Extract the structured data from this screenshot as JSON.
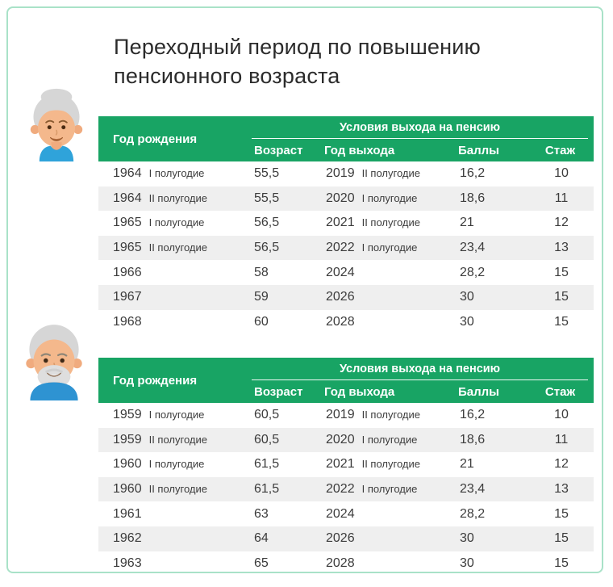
{
  "title": {
    "line1": "Переходный период по повышению",
    "line2": "пенсионного возраста"
  },
  "table_headers": {
    "birth_year": "Год рождения",
    "conditions": "Условия выхода на пенсию",
    "age": "Возраст",
    "exit_year": "Год выхода",
    "points": "Баллы",
    "experience": "Стаж"
  },
  "tables": [
    {
      "avatar_icon": "elderly-woman-avatar",
      "rows": [
        {
          "birth_year": "1964",
          "birth_half": "I полугодие",
          "age": "55,5",
          "exit_year": "2019",
          "exit_half": "II полугодие",
          "points": "16,2",
          "experience": "10"
        },
        {
          "birth_year": "1964",
          "birth_half": "II полугодие",
          "age": "55,5",
          "exit_year": "2020",
          "exit_half": "I полугодие",
          "points": "18,6",
          "experience": "11"
        },
        {
          "birth_year": "1965",
          "birth_half": "I полугодие",
          "age": "56,5",
          "exit_year": "2021",
          "exit_half": "II полугодие",
          "points": "21",
          "experience": "12"
        },
        {
          "birth_year": "1965",
          "birth_half": "II полугодие",
          "age": "56,5",
          "exit_year": "2022",
          "exit_half": "I полугодие",
          "points": "23,4",
          "experience": "13"
        },
        {
          "birth_year": "1966",
          "birth_half": "",
          "age": "58",
          "exit_year": "2024",
          "exit_half": "",
          "points": "28,2",
          "experience": "15"
        },
        {
          "birth_year": "1967",
          "birth_half": "",
          "age": "59",
          "exit_year": "2026",
          "exit_half": "",
          "points": "30",
          "experience": "15"
        },
        {
          "birth_year": "1968",
          "birth_half": "",
          "age": "60",
          "exit_year": "2028",
          "exit_half": "",
          "points": "30",
          "experience": "15"
        }
      ]
    },
    {
      "avatar_icon": "elderly-man-avatar",
      "rows": [
        {
          "birth_year": "1959",
          "birth_half": "I полугодие",
          "age": "60,5",
          "exit_year": "2019",
          "exit_half": "II полугодие",
          "points": "16,2",
          "experience": "10"
        },
        {
          "birth_year": "1959",
          "birth_half": "II полугодие",
          "age": "60,5",
          "exit_year": "2020",
          "exit_half": "I полугодие",
          "points": "18,6",
          "experience": "11"
        },
        {
          "birth_year": "1960",
          "birth_half": "I полугодие",
          "age": "61,5",
          "exit_year": "2021",
          "exit_half": "II полугодие",
          "points": "21",
          "experience": "12"
        },
        {
          "birth_year": "1960",
          "birth_half": "II полугодие",
          "age": "61,5",
          "exit_year": "2022",
          "exit_half": "I полугодие",
          "points": "23,4",
          "experience": "13"
        },
        {
          "birth_year": "1961",
          "birth_half": "",
          "age": "63",
          "exit_year": "2024",
          "exit_half": "",
          "points": "28,2",
          "experience": "15"
        },
        {
          "birth_year": "1962",
          "birth_half": "",
          "age": "64",
          "exit_year": "2026",
          "exit_half": "",
          "points": "30",
          "experience": "15"
        },
        {
          "birth_year": "1963",
          "birth_half": "",
          "age": "65",
          "exit_year": "2028",
          "exit_half": "",
          "points": "30",
          "experience": "15"
        }
      ]
    }
  ],
  "colors": {
    "header_green": "#18a464",
    "header_text": "#ffffff",
    "row_stripe_gray": "#efefef",
    "body_text": "#3c3c3c",
    "title_text": "#2b2b2b",
    "frame_border_mint": "#a9e2c8",
    "hair_gray": "#d6d6d6",
    "skin_tone": "#f4b88c",
    "woman_shirt_blue": "#2fa3da",
    "man_shirt_blue": "#2e93d2"
  }
}
